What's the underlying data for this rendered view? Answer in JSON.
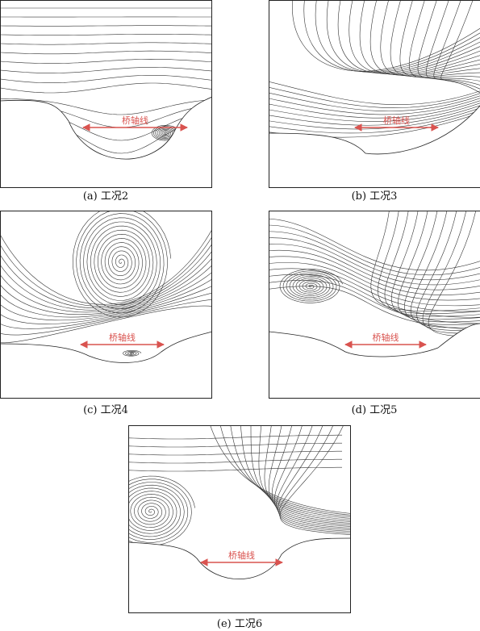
{
  "panels": [
    {
      "caption": "(a) 工况2",
      "axis_label": "桥轴线"
    },
    {
      "caption": "(b) 工况3",
      "axis_label": "桥轴线"
    },
    {
      "caption": "(c) 工况4",
      "axis_label": "桥轴线"
    },
    {
      "caption": "(d) 工况5",
      "axis_label": "桥轴线"
    },
    {
      "caption": "(e) 工况6",
      "axis_label": "桥轴线"
    }
  ]
}
